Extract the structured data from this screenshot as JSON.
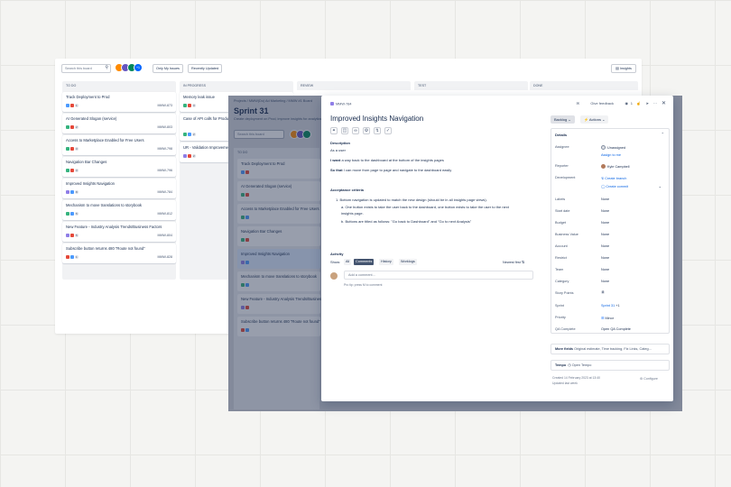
{
  "board": {
    "search_placeholder": "Search this board",
    "avatar_more": "+1",
    "filter_only_my_issues": "Only My Issues",
    "filter_recently_updated": "Recently Updated",
    "insights_label": "Insights",
    "columns": [
      {
        "name": "TO DO"
      },
      {
        "name": "IN PROGRESS"
      },
      {
        "name": "REVIEW"
      },
      {
        "name": "TEST"
      },
      {
        "name": "DONE"
      }
    ],
    "todo_cards": [
      {
        "title": "Track Deployment to Prod",
        "key": "MMW-873"
      },
      {
        "title": "AI Generated Slogan (service)",
        "key": "MMW-803"
      },
      {
        "title": "Access to Marketplace Enabled for Free Users",
        "key": "MMW-798"
      },
      {
        "title": "Navigation Bar Changes",
        "key": "MMW-796"
      },
      {
        "title": "Improved Insights Navigation",
        "key": "MMW-784"
      },
      {
        "title": "Mechanism to move translations to storybook",
        "key": "MMW-812"
      },
      {
        "title": "New Feature - Industry Analysis Trends/Business Factors",
        "key": "MMW-804"
      },
      {
        "title": "Subscribe button returns 480 \"Route not found\"",
        "key": "MMW-828"
      }
    ],
    "inprogress_cards": [
      {
        "title": "Memory leak issue"
      },
      {
        "title": "Case of API calls for Product database"
      },
      {
        "title": "UR - Validation Improvements"
      }
    ]
  },
  "sprint": {
    "breadcrumb": "Projects  /  MMW(Do) Ad Marketing  /  MMW #1 Board",
    "title": "Sprint 31",
    "subtitle": "Create deployment on Prod, improve insights for analytics",
    "search_placeholder": "Search this board",
    "column_header": "TO DO",
    "cards": [
      {
        "title": "Track Deployment to Prod"
      },
      {
        "title": "AI Generated Slogan (service)"
      },
      {
        "title": "Access to Marketplace Enabled for Free Users"
      },
      {
        "title": "Navigation Bar Changes"
      },
      {
        "title": "Improved Insights Navigation"
      },
      {
        "title": "Mechanism to move translations to storybook"
      },
      {
        "title": "New Feature - Industry Analysis Trends/Business"
      },
      {
        "title": "Subscribe button returns 480 \"Route not found\""
      }
    ]
  },
  "issue": {
    "key": "MMW-784",
    "title": "Improved Insights Navigation",
    "give_feedback": "Give feedback",
    "watchers": "1",
    "description_heading": "Description",
    "as_a": "As a user",
    "i_want_bold": "I want",
    "i_want_rest": " a way back to the dashboard at the bottom of the insights pages",
    "so_that_bold": "So that",
    "so_that_rest": " I can move from page to page and navigate to the dashboard easily",
    "acceptance_heading": "Acceptance criteria",
    "criteria": [
      "1.  Bottom navigation is updated to match the new design (should be in all insights page views).",
      "a.  One button exists to take the user back to the dashboard, one button exists to take the user to the next",
      "     insights page.",
      "b.  Buttons are titled as follows: \"Go back to Dashboard\" and \"Go to next Analysis\""
    ],
    "activity_heading": "Activity",
    "show_label": "Show:",
    "tabs": [
      "All",
      "Comments",
      "History",
      "Worklogs"
    ],
    "sort_label": "Newest first",
    "comment_placeholder": "Add a comment...",
    "pro_tip": "Pro tip: press M to comment",
    "status_button": "Backlog",
    "actions_button": "Actions",
    "details_heading": "Details",
    "fields": [
      {
        "label": "Assignee",
        "value": "Unassigned"
      },
      {
        "label": "",
        "value": "Assign to me"
      },
      {
        "label": "Reporter",
        "value": "Kyle Campbell"
      },
      {
        "label": "Development",
        "value": "Create branch"
      },
      {
        "label": "",
        "value": "Create commit"
      },
      {
        "label": "Labels",
        "value": "None"
      },
      {
        "label": "Start date",
        "value": "None"
      },
      {
        "label": "Budget",
        "value": "None"
      },
      {
        "label": "Business Value",
        "value": "None"
      },
      {
        "label": "Account",
        "value": "None"
      },
      {
        "label": "Restrict",
        "value": "None"
      },
      {
        "label": "Team",
        "value": "None"
      },
      {
        "label": "Category",
        "value": "None"
      },
      {
        "label": "Story Points",
        "value": "8"
      },
      {
        "label": "Sprint",
        "value": "Sprint 31"
      },
      {
        "label": "Priority",
        "value": "Minor"
      },
      {
        "label": "QA Complete",
        "value": "Open QA Complete"
      }
    ],
    "sprint_extra": "+1",
    "more_fields_label": "More fields",
    "more_fields_value": "Original estimate, Time tracking, Fix Links, Categ...",
    "tempo_label": "Tempo",
    "tempo_value": "Open Tempo",
    "created": "Created 14 February 2023 at 13:40",
    "updated": "Updated last week",
    "configure": "Configure"
  },
  "colors": {
    "story_green": "#36b37e",
    "bug_red": "#e5493a",
    "task_blue": "#4c9aff",
    "epic_purple": "#8f7ee7",
    "link_blue": "#0c66e4"
  }
}
